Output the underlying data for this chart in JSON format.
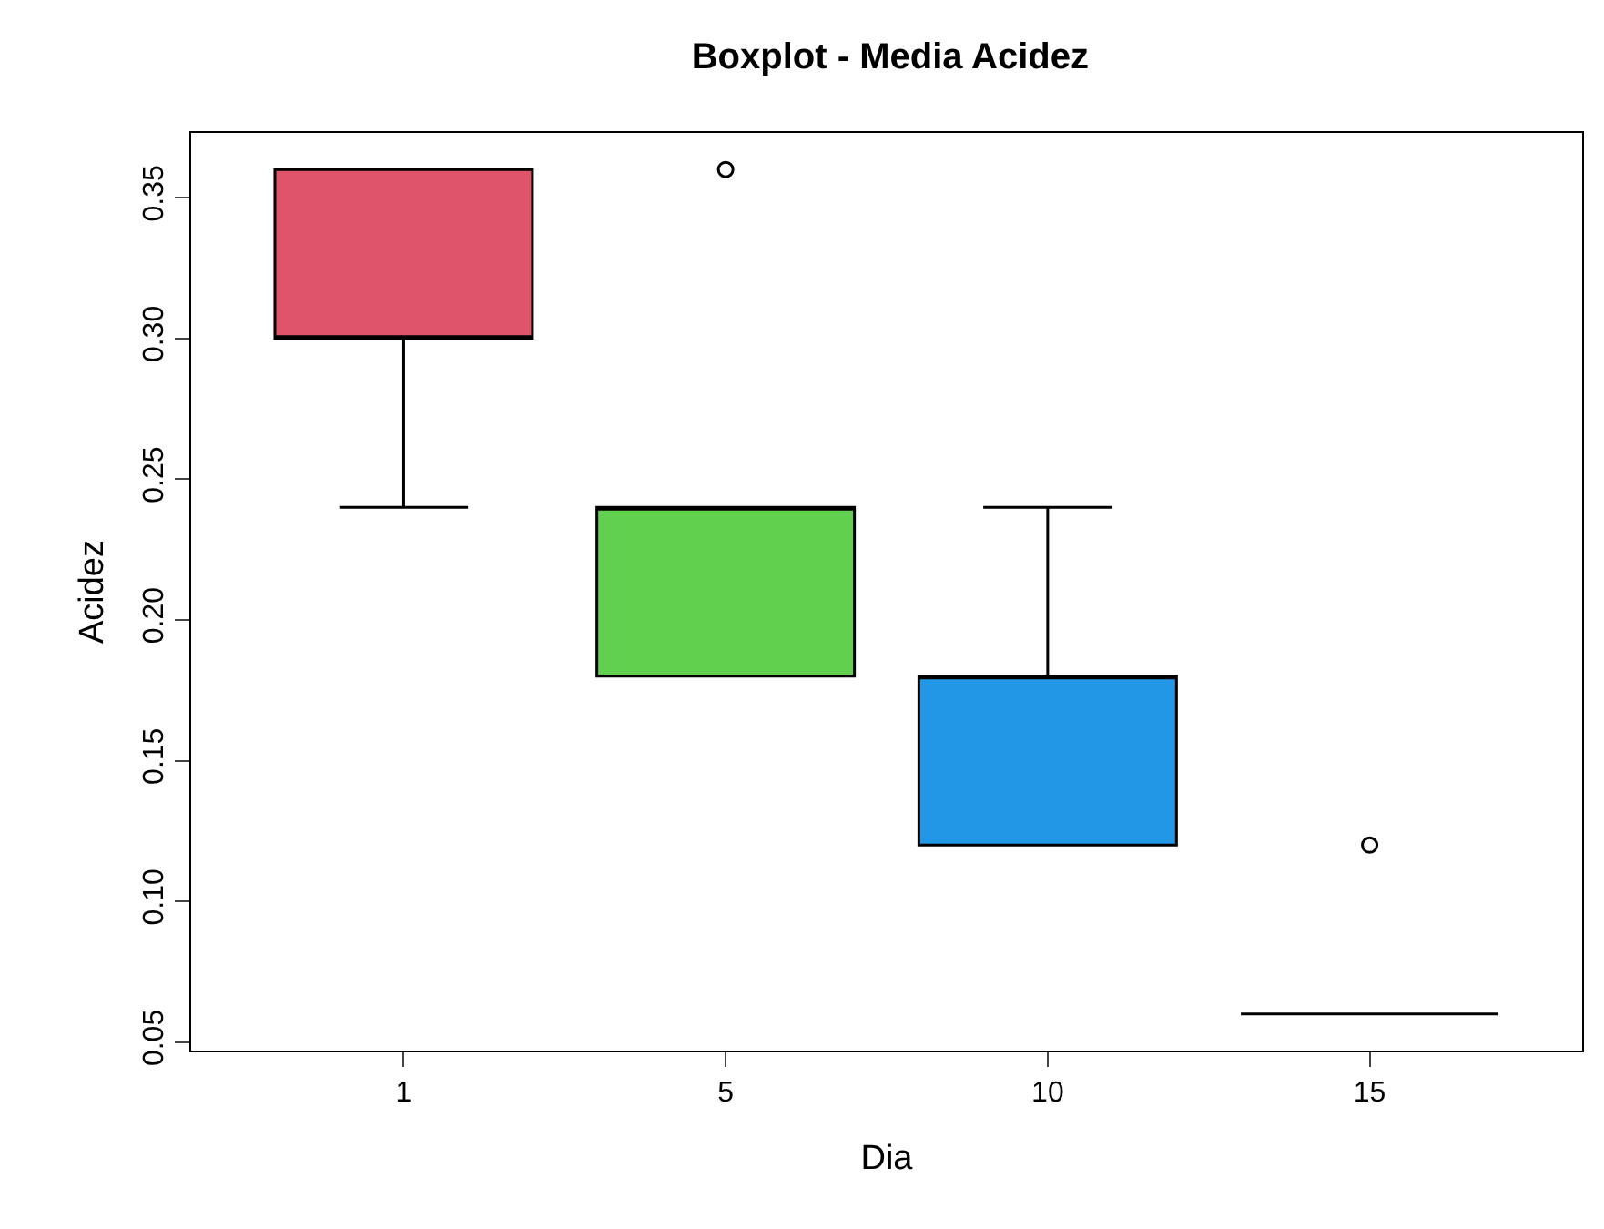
{
  "chart_data": {
    "type": "box",
    "title": "Boxplot - Media Acidez",
    "xlabel": "Dia",
    "ylabel": "Acidez",
    "categories": [
      "1",
      "5",
      "10",
      "15"
    ],
    "colors": [
      "#df536b",
      "#61d04f",
      "#2297e6",
      "#000000"
    ],
    "boxes": [
      {
        "low": 0.24,
        "q1": 0.3,
        "median": 0.3,
        "q3": 0.36,
        "high": 0.36
      },
      {
        "low": 0.18,
        "q1": 0.18,
        "median": 0.24,
        "q3": 0.24,
        "high": 0.24,
        "outliers": [
          0.36
        ]
      },
      {
        "low": 0.12,
        "q1": 0.12,
        "median": 0.18,
        "q3": 0.18,
        "high": 0.24
      },
      {
        "low": 0.06,
        "q1": 0.06,
        "median": 0.06,
        "q3": 0.06,
        "high": 0.06,
        "outliers": [
          0.12
        ]
      }
    ],
    "ylim": [
      0.047,
      0.373
    ],
    "yticks": [
      0.05,
      {
        "value": 0.1,
        "label": "0.10"
      },
      0.15,
      {
        "value": 0.2,
        "label": "0.20"
      },
      0.25,
      {
        "value": 0.3,
        "label": "0.30"
      },
      0.35
    ]
  }
}
